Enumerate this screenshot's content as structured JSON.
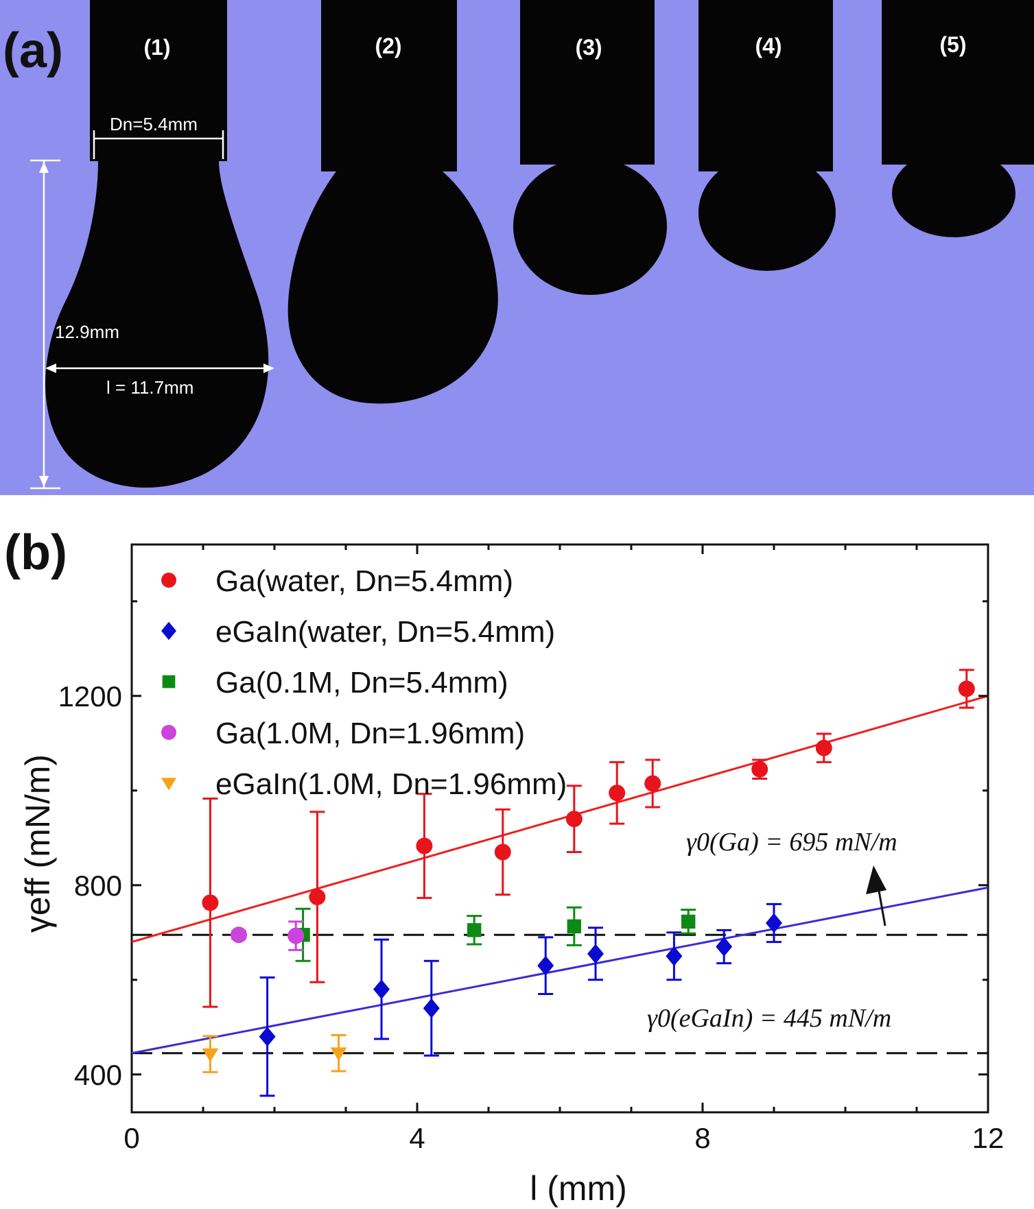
{
  "panel_a": {
    "label": "(a)",
    "background_color": "#8f8ff0",
    "drop_color": "#050505",
    "drops": [
      {
        "label": "(1)"
      },
      {
        "label": "(2)"
      },
      {
        "label": "(3)"
      },
      {
        "label": "(4)"
      },
      {
        "label": "(5)"
      }
    ],
    "annotations": {
      "nozzle_diameter": "Dn=5.4mm",
      "height": "12.9mm",
      "width": "l = 11.7mm"
    }
  },
  "panel_b": {
    "label": "(b)",
    "gamma_ga_label": "γ0(Ga) = 695 mN/m",
    "gamma_egain_label": "γ0(eGaIn) = 445 mN/m"
  },
  "chart_data": {
    "type": "scatter",
    "title": "",
    "xlabel": "l (mm)",
    "ylabel": "γeff (mN/m)",
    "xlim": [
      0,
      12
    ],
    "ylim": [
      320,
      1520
    ],
    "xticks": [
      0,
      4,
      8,
      12
    ],
    "yticks": [
      400,
      800,
      1200
    ],
    "legend_position": "top-left",
    "series": [
      {
        "name": "Ga(water, Dn=5.4mm)",
        "marker": "circle",
        "color": "#e8141c",
        "points": [
          {
            "x": 1.1,
            "y": 763,
            "err": 220
          },
          {
            "x": 2.6,
            "y": 775,
            "err": 180
          },
          {
            "x": 4.1,
            "y": 883,
            "err": 110
          },
          {
            "x": 5.2,
            "y": 870,
            "err": 90
          },
          {
            "x": 6.2,
            "y": 940,
            "err": 70
          },
          {
            "x": 6.8,
            "y": 995,
            "err": 65
          },
          {
            "x": 7.3,
            "y": 1015,
            "err": 50
          },
          {
            "x": 8.8,
            "y": 1045,
            "err": 20
          },
          {
            "x": 9.7,
            "y": 1090,
            "err": 30
          },
          {
            "x": 11.7,
            "y": 1215,
            "err": 40
          }
        ]
      },
      {
        "name": "eGaIn(water, Dn=5.4mm)",
        "marker": "diamond",
        "color": "#0a0ad2",
        "points": [
          {
            "x": 1.9,
            "y": 480,
            "err": 125
          },
          {
            "x": 3.5,
            "y": 580,
            "err": 105
          },
          {
            "x": 4.2,
            "y": 540,
            "err": 100
          },
          {
            "x": 5.8,
            "y": 630,
            "err": 60
          },
          {
            "x": 6.5,
            "y": 655,
            "err": 55
          },
          {
            "x": 7.6,
            "y": 650,
            "err": 50
          },
          {
            "x": 8.3,
            "y": 670,
            "err": 35
          },
          {
            "x": 9.0,
            "y": 720,
            "err": 40
          }
        ]
      },
      {
        "name": "Ga(0.1M, Dn=5.4mm)",
        "marker": "square",
        "color": "#0d8a14",
        "points": [
          {
            "x": 2.4,
            "y": 695,
            "err": 55
          },
          {
            "x": 4.8,
            "y": 705,
            "err": 30
          },
          {
            "x": 6.2,
            "y": 713,
            "err": 40
          },
          {
            "x": 7.8,
            "y": 723,
            "err": 25
          }
        ]
      },
      {
        "name": "Ga(1.0M, Dn=1.96mm)",
        "marker": "circle",
        "color": "#cc44dd",
        "points": [
          {
            "x": 1.5,
            "y": 695,
            "err": 8
          },
          {
            "x": 2.3,
            "y": 693,
            "err": 30
          }
        ]
      },
      {
        "name": "eGaIn(1.0M, Dn=1.96mm)",
        "marker": "triangle-down",
        "color": "#f7a21b",
        "points": [
          {
            "x": 1.1,
            "y": 443,
            "err": 38
          },
          {
            "x": 2.9,
            "y": 445,
            "err": 38
          }
        ]
      }
    ],
    "fit_lines": [
      {
        "name": "Ga fit",
        "color": "#f01e1e",
        "x": [
          0,
          12
        ],
        "y": [
          680,
          1200
        ]
      },
      {
        "name": "eGaIn fit",
        "color": "#3a2ad8",
        "x": [
          0,
          12
        ],
        "y": [
          445,
          795
        ]
      }
    ],
    "reference_lines": [
      {
        "name": "γ0(Ga)",
        "y": 695,
        "style": "dashed"
      },
      {
        "name": "γ0(eGaIn)",
        "y": 445,
        "style": "dashed"
      }
    ]
  }
}
